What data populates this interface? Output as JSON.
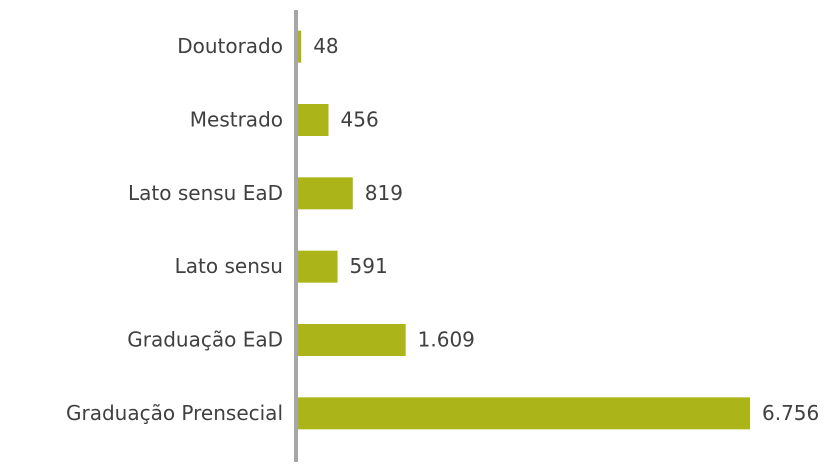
{
  "chart_data": {
    "type": "bar",
    "orientation": "horizontal",
    "categories": [
      "Doutorado",
      "Mestrado",
      "Lato sensu EaD",
      "Lato sensu",
      "Graduação EaD",
      "Graduação Prensecial"
    ],
    "values": [
      48,
      456,
      819,
      591,
      1609,
      6756
    ],
    "value_labels": [
      "48",
      "456",
      "819",
      "591",
      "1.609",
      "6.756"
    ],
    "color": "#abb51a"
  }
}
